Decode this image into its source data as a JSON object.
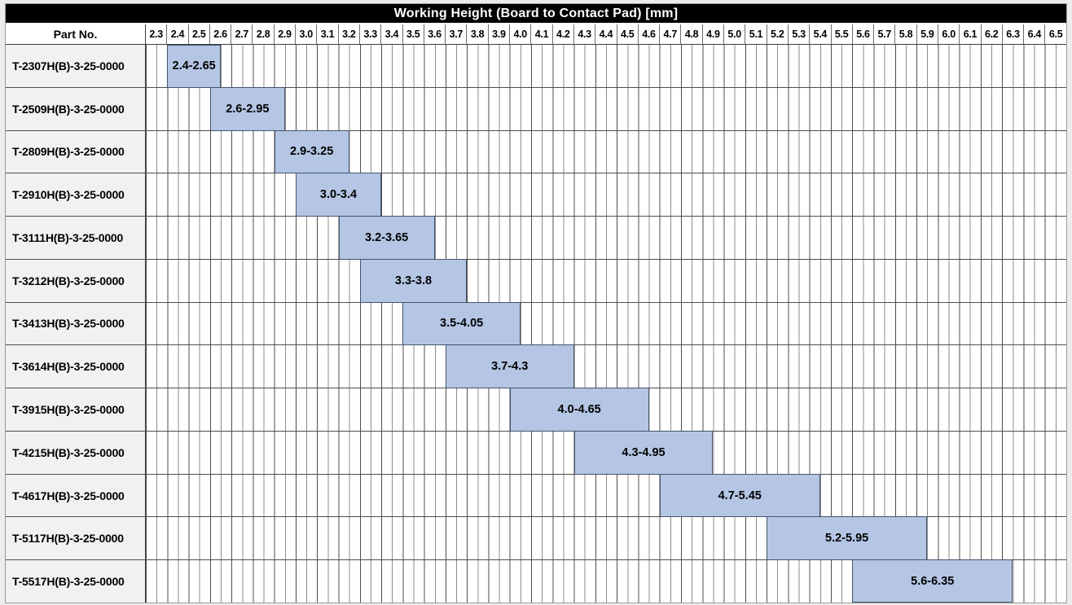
{
  "chart": {
    "title": "Working Height (Board to Contact Pad) [mm]",
    "row_header": "Part No."
  },
  "chart_data": {
    "type": "bar",
    "subtype": "horizontal_range_gantt",
    "title": "Working Height (Board to Contact Pad) [mm]",
    "xlabel": "Working Height (Board to Contact Pad) [mm]",
    "ylabel": "Part No.",
    "grid": true,
    "legend": false,
    "axis": {
      "min": 2.3,
      "max": 6.6,
      "major_step": 0.1,
      "minor_step": 0.05,
      "tick_labels": [
        "2.3",
        "2.4",
        "2.5",
        "2.6",
        "2.7",
        "2.8",
        "2.9",
        "3.0",
        "3.1",
        "3.2",
        "3.3",
        "3.4",
        "3.5",
        "3.6",
        "3.7",
        "3.8",
        "3.9",
        "4.0",
        "4.1",
        "4.2",
        "4.3",
        "4.4",
        "4.5",
        "4.6",
        "4.7",
        "4.8",
        "4.9",
        "5.0",
        "5.1",
        "5.2",
        "5.3",
        "5.4",
        "5.5",
        "5.6",
        "5.7",
        "5.8",
        "5.9",
        "6.0",
        "6.1",
        "6.2",
        "6.3",
        "6.4",
        "6.5"
      ]
    },
    "rows": [
      {
        "part_no": "T-2307H(B)-3-25-0000",
        "start": 2.4,
        "end": 2.65,
        "label": "2.4-2.65"
      },
      {
        "part_no": "T-2509H(B)-3-25-0000",
        "start": 2.6,
        "end": 2.95,
        "label": "2.6-2.95"
      },
      {
        "part_no": "T-2809H(B)-3-25-0000",
        "start": 2.9,
        "end": 3.25,
        "label": "2.9-3.25"
      },
      {
        "part_no": "T-2910H(B)-3-25-0000",
        "start": 3.0,
        "end": 3.4,
        "label": "3.0-3.4"
      },
      {
        "part_no": "T-3111H(B)-3-25-0000",
        "start": 3.2,
        "end": 3.65,
        "label": "3.2-3.65"
      },
      {
        "part_no": "T-3212H(B)-3-25-0000",
        "start": 3.3,
        "end": 3.8,
        "label": "3.3-3.8"
      },
      {
        "part_no": "T-3413H(B)-3-25-0000",
        "start": 3.5,
        "end": 4.05,
        "label": "3.5-4.05"
      },
      {
        "part_no": "T-3614H(B)-3-25-0000",
        "start": 3.7,
        "end": 4.3,
        "label": "3.7-4.3"
      },
      {
        "part_no": "T-3915H(B)-3-25-0000",
        "start": 4.0,
        "end": 4.65,
        "label": "4.0-4.65"
      },
      {
        "part_no": "T-4215H(B)-3-25-0000",
        "start": 4.3,
        "end": 4.95,
        "label": "4.3-4.95"
      },
      {
        "part_no": "T-4617H(B)-3-25-0000",
        "start": 4.7,
        "end": 5.45,
        "label": "4.7-5.45"
      },
      {
        "part_no": "T-5117H(B)-3-25-0000",
        "start": 5.2,
        "end": 5.95,
        "label": "5.2-5.95"
      },
      {
        "part_no": "T-5517H(B)-3-25-0000",
        "start": 5.6,
        "end": 6.35,
        "label": "5.6-6.35"
      }
    ]
  },
  "colors": {
    "bar_fill": "#b4c6e4",
    "bar_border": "#44546a",
    "title_bg": "#000000",
    "title_text": "#ffffff",
    "row_label_bg": "#f1f1f1",
    "grid_line_minor": "#8c8c8c",
    "grid_line_major": "#4d4d4d",
    "row_separator": "#4d4d4d"
  }
}
